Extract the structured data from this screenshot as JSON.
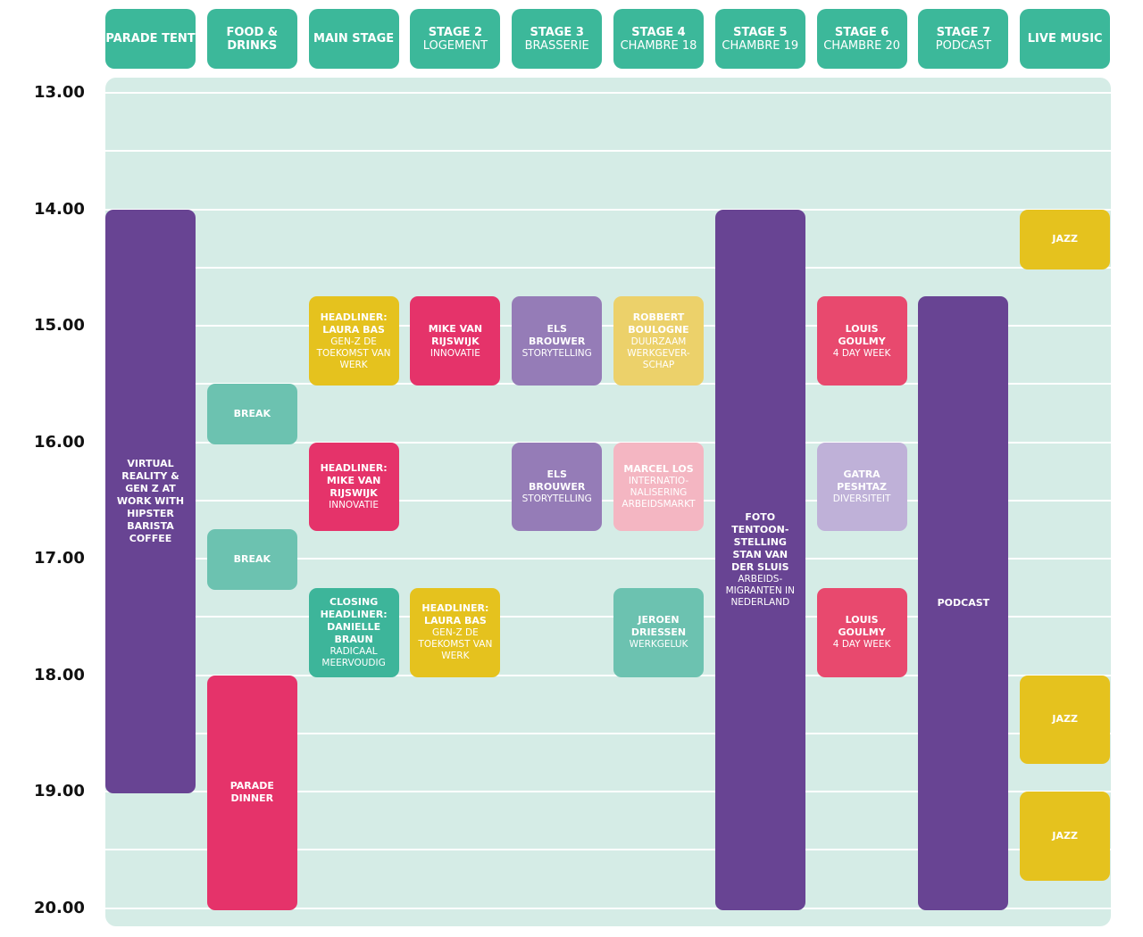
{
  "times": [
    "13.00",
    "14.00",
    "15.00",
    "16.00",
    "17.00",
    "18.00",
    "19.00",
    "20.00"
  ],
  "columns": [
    {
      "title": "PARADE TENT",
      "events": [
        {
          "title": "VIRTUAL REALITY & GEN Z AT WORK WITH HIPSTER BARISTA COFFEE",
          "color": "#684493"
        }
      ]
    },
    {
      "title": "FOOD & DRINKS",
      "events": [
        {
          "title": "BREAK",
          "color": "#6cc2b0"
        },
        {
          "title": "BREAK",
          "color": "#6cc2b0"
        },
        {
          "title": "PARADE DINNER",
          "color": "#e5336a"
        }
      ]
    },
    {
      "title": "MAIN STAGE",
      "events": [
        {
          "title": "HEADLINER: LAURA BAS",
          "detail": "GEN-Z DE TOEKOMST VAN WERK",
          "color": "#e5c21e"
        },
        {
          "title": "HEADLINER: MIKE VAN RIJSWIJK",
          "detail": "INNOVATIE",
          "color": "#e5336a"
        },
        {
          "title": "CLOSING HEADLINER: DANIELLE BRAUN",
          "detail": "RADICAAL MEERVOUDIG",
          "color": "#3db59a"
        }
      ]
    },
    {
      "title": "STAGE 2",
      "subtitle": "LOGEMENT",
      "events": [
        {
          "title": "MIKE VAN RIJSWIJK",
          "detail": "INNOVATIE",
          "color": "#e5336a"
        },
        {
          "title": "HEADLINER: LAURA BAS",
          "detail": "GEN-Z DE TOEKOMST VAN WERK",
          "color": "#e5c21e"
        }
      ]
    },
    {
      "title": "STAGE 3",
      "subtitle": "BRASSERIE",
      "events": [
        {
          "title": "ELS BROUWER",
          "detail": "STORYTELLING",
          "color": "#957cb7"
        },
        {
          "title": "ELS BROUWER",
          "detail": "STORYTELLING",
          "color": "#957cb7"
        }
      ]
    },
    {
      "title": "STAGE 4",
      "subtitle": "CHAMBRE 18",
      "events": [
        {
          "title": "ROBBERT BOULOGNE",
          "detail": "DUURZAAM WERKGEVER-SCHAP",
          "color": "#ecd16a"
        },
        {
          "title": "MARCEL LOS",
          "detail": "INTERNATIO-NALISERING ARBEIDSMARKT",
          "color": "#f4b6c2"
        },
        {
          "title": "JEROEN DRIESSEN",
          "detail": "WERKGELUK",
          "color": "#6cc2b0"
        }
      ]
    },
    {
      "title": "STAGE 5",
      "subtitle": "CHAMBRE 19",
      "events": [
        {
          "title": "FOTO TENTOON-STELLING STAN VAN DER SLUIS",
          "detail": "ARBEIDS-MIGRANTEN IN NEDERLAND",
          "color": "#684493"
        }
      ]
    },
    {
      "title": "STAGE 6",
      "subtitle": "CHAMBRE 20",
      "events": [
        {
          "title": "LOUIS GOULMY",
          "detail": "4 DAY WEEK",
          "color": "#e8496e"
        },
        {
          "title": "GATRA PESHTAZ",
          "detail": "DIVERSITEIT",
          "color": "#bfb1d8"
        },
        {
          "title": "LOUIS GOULMY",
          "detail": "4 DAY WEEK",
          "color": "#e8496e"
        }
      ]
    },
    {
      "title": "STAGE 7",
      "subtitle": "PODCAST",
      "events": [
        {
          "title": "PODCAST",
          "color": "#684493"
        }
      ]
    },
    {
      "title": "LIVE MUSIC",
      "events": [
        {
          "title": "JAZZ",
          "color": "#e5c21e"
        },
        {
          "title": "JAZZ",
          "color": "#e5c21e"
        },
        {
          "title": "JAZZ",
          "color": "#e5c21e"
        }
      ]
    }
  ]
}
